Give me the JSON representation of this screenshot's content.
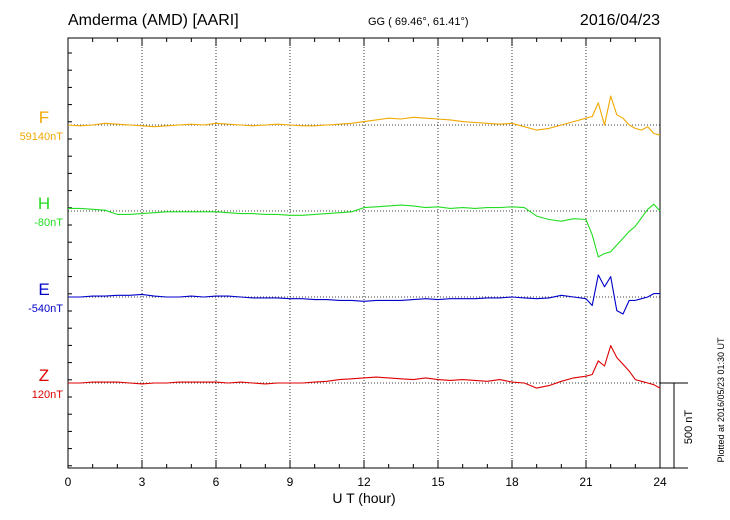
{
  "header": {
    "station": "Amderma (AMD)  [AARI]",
    "coords": "GG ( 69.46°,  61.41°)",
    "date": "2016/04/23"
  },
  "footer": {
    "plotted": "Plotted at 2016/05/23 01:30 UT"
  },
  "chart_data": {
    "type": "line",
    "title": "Amderma (AMD)  [AARI]",
    "xlabel": "U T (hour)",
    "ylabel": "",
    "xlim": [
      0,
      24
    ],
    "x_ticks": [
      "0",
      "3",
      "6",
      "9",
      "12",
      "15",
      "18",
      "21",
      "24"
    ],
    "grid": "vertical dotted lines every 3 h; dotted baseline per component",
    "scale_bar": {
      "label": "500 nT",
      "value_nT": 500
    },
    "series": [
      {
        "name": "F",
        "baseline_label": "59140nT",
        "baseline_nT": 59140,
        "color": "#f0a800",
        "x": [
          0,
          0.5,
          1,
          1.5,
          2,
          2.5,
          3,
          3.5,
          4,
          4.5,
          5,
          5.5,
          6,
          6.5,
          7,
          7.5,
          8,
          8.5,
          9,
          9.5,
          10,
          10.5,
          11,
          11.5,
          12,
          12.5,
          13,
          13.5,
          14,
          14.5,
          15,
          15.5,
          16,
          16.5,
          17,
          17.5,
          18,
          18.5,
          19,
          19.5,
          20,
          20.5,
          21,
          21.25,
          21.5,
          21.75,
          22,
          22.25,
          22.5,
          22.75,
          23,
          23.25,
          23.5,
          23.75,
          24
        ],
        "values": [
          0,
          -5,
          0,
          10,
          5,
          0,
          -5,
          -10,
          -5,
          0,
          5,
          0,
          10,
          5,
          0,
          -5,
          0,
          5,
          0,
          -5,
          -5,
          0,
          5,
          10,
          20,
          30,
          40,
          35,
          45,
          40,
          35,
          30,
          20,
          15,
          10,
          5,
          10,
          -10,
          -30,
          -20,
          0,
          20,
          40,
          50,
          130,
          0,
          170,
          60,
          40,
          0,
          -20,
          -30,
          -10,
          -50,
          -60
        ]
      },
      {
        "name": "H",
        "baseline_label": "-80nT",
        "baseline_nT": -80,
        "color": "#22dd22",
        "x": [
          0,
          0.5,
          1,
          1.5,
          2,
          2.5,
          3,
          3.5,
          4,
          4.5,
          5,
          5.5,
          6,
          6.5,
          7,
          7.5,
          8,
          8.5,
          9,
          9.5,
          10,
          10.5,
          11,
          11.5,
          12,
          12.5,
          13,
          13.5,
          14,
          14.5,
          15,
          15.5,
          16,
          16.5,
          17,
          17.5,
          18,
          18.5,
          19,
          19.5,
          20,
          20.5,
          21,
          21.25,
          21.5,
          21.75,
          22,
          22.25,
          22.5,
          22.75,
          23,
          23.25,
          23.5,
          23.75,
          24
        ],
        "values": [
          15,
          15,
          10,
          5,
          -20,
          -20,
          -15,
          -10,
          -5,
          -5,
          -5,
          -5,
          -5,
          -10,
          -15,
          -15,
          -20,
          -20,
          -25,
          -25,
          -20,
          -15,
          -10,
          -5,
          20,
          25,
          30,
          35,
          30,
          20,
          25,
          15,
          20,
          15,
          20,
          20,
          25,
          20,
          -30,
          -50,
          -60,
          -45,
          -50,
          -140,
          -270,
          -250,
          -240,
          -200,
          -160,
          -120,
          -90,
          -40,
          10,
          40,
          0
        ]
      },
      {
        "name": "E",
        "baseline_label": "-540nT",
        "baseline_nT": -540,
        "color": "#0000cc",
        "x": [
          0,
          0.5,
          1,
          1.5,
          2,
          2.5,
          3,
          3.5,
          4,
          4.5,
          5,
          5.5,
          6,
          6.5,
          7,
          7.5,
          8,
          8.5,
          9,
          9.5,
          10,
          10.5,
          11,
          11.5,
          12,
          12.5,
          13,
          13.5,
          14,
          14.5,
          15,
          15.5,
          16,
          16.5,
          17,
          17.5,
          18,
          18.5,
          19,
          19.5,
          20,
          20.5,
          21,
          21.25,
          21.5,
          21.75,
          22,
          22.25,
          22.5,
          22.75,
          23,
          23.25,
          23.5,
          23.75,
          24
        ],
        "values": [
          0,
          0,
          5,
          5,
          10,
          10,
          15,
          5,
          0,
          0,
          5,
          0,
          5,
          5,
          0,
          -5,
          -5,
          -5,
          -10,
          -10,
          -15,
          -15,
          -20,
          -20,
          -25,
          -20,
          -20,
          -20,
          -15,
          -10,
          -15,
          -10,
          -10,
          -10,
          -5,
          -5,
          0,
          -5,
          -10,
          -5,
          10,
          0,
          -10,
          -50,
          130,
          60,
          120,
          -80,
          -100,
          -20,
          -20,
          -10,
          0,
          20,
          20
        ]
      },
      {
        "name": "Z",
        "baseline_label": "120nT",
        "baseline_nT": 120,
        "color": "#dd0000",
        "x": [
          0,
          0.5,
          1,
          1.5,
          2,
          2.5,
          3,
          3.5,
          4,
          4.5,
          5,
          5.5,
          6,
          6.5,
          7,
          7.5,
          8,
          8.5,
          9,
          9.5,
          10,
          10.5,
          11,
          11.5,
          12,
          12.5,
          13,
          13.5,
          14,
          14.5,
          15,
          15.5,
          16,
          16.5,
          17,
          17.5,
          18,
          18.5,
          19,
          19.5,
          20,
          20.5,
          21,
          21.25,
          21.5,
          21.75,
          22,
          22.25,
          22.5,
          22.75,
          23,
          23.25,
          23.5,
          23.75,
          24
        ],
        "values": [
          0,
          0,
          5,
          5,
          5,
          0,
          -5,
          0,
          0,
          5,
          5,
          5,
          5,
          0,
          5,
          0,
          -5,
          0,
          0,
          0,
          5,
          10,
          20,
          25,
          30,
          35,
          30,
          25,
          20,
          30,
          20,
          15,
          20,
          15,
          10,
          20,
          5,
          0,
          -30,
          -15,
          10,
          30,
          40,
          50,
          130,
          100,
          220,
          150,
          110,
          70,
          20,
          10,
          0,
          -10,
          -30
        ]
      }
    ]
  }
}
